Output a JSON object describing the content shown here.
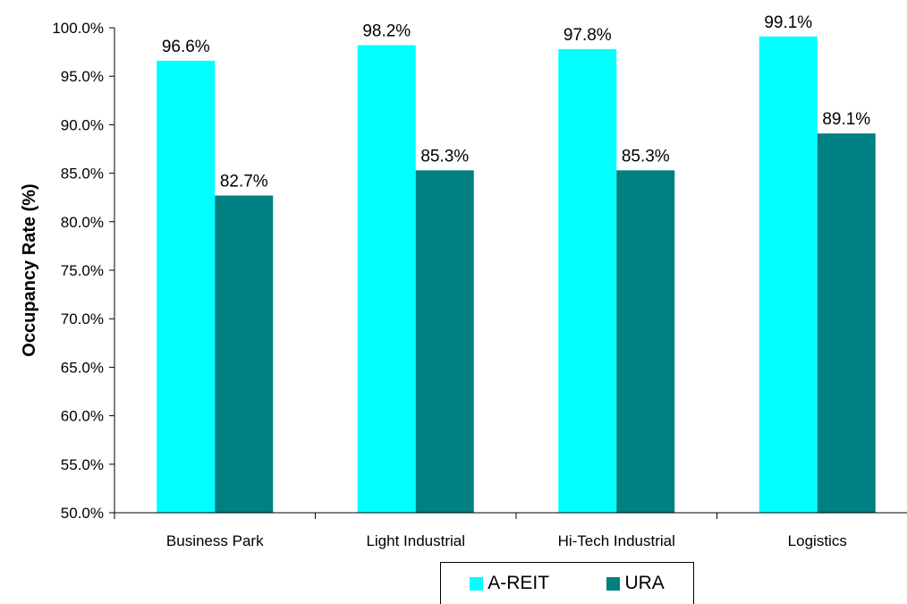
{
  "chart_data": {
    "type": "bar",
    "title": "",
    "xlabel": "",
    "ylabel": "Occupancy Rate (%)",
    "categories": [
      "Business Park",
      "Light Industrial",
      "Hi-Tech Industrial",
      "Logistics"
    ],
    "series": [
      {
        "name": "A-REIT",
        "color": "#00FFFF",
        "values": [
          96.6,
          98.2,
          97.8,
          99.1
        ],
        "labels": [
          "96.6%",
          "98.2%",
          "97.8%",
          "99.1%"
        ]
      },
      {
        "name": "URA",
        "color": "#008080",
        "values": [
          82.7,
          85.3,
          85.3,
          89.1
        ],
        "labels": [
          "82.7%",
          "85.3%",
          "85.3%",
          "89.1%"
        ]
      }
    ],
    "ylim": [
      50,
      100
    ],
    "yticks": [
      50,
      55,
      60,
      65,
      70,
      75,
      80,
      85,
      90,
      95,
      100
    ],
    "ytick_labels": [
      "50.0%",
      "55.0%",
      "60.0%",
      "65.0%",
      "70.0%",
      "75.0%",
      "80.0%",
      "85.0%",
      "90.0%",
      "95.0%",
      "100.0%"
    ],
    "grid": false,
    "legend_position": "bottom"
  }
}
